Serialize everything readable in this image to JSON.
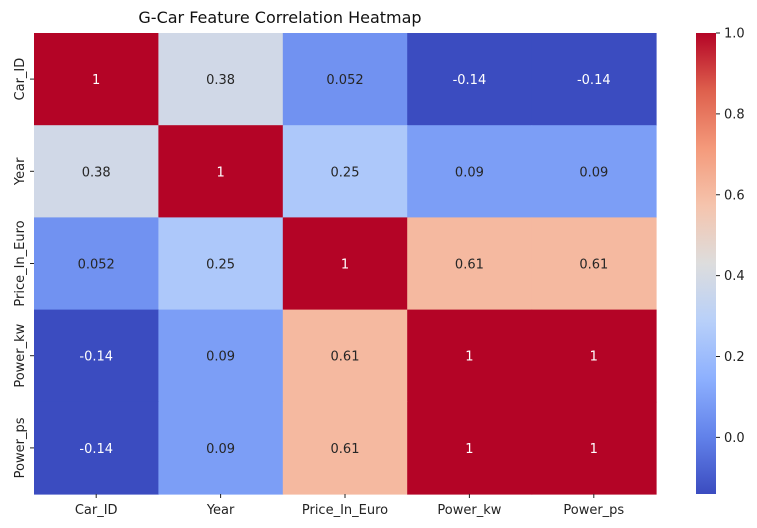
{
  "chart_data": {
    "type": "heatmap",
    "title": "G-Car Feature Correlation Heatmap",
    "xlabel": "",
    "ylabel": "",
    "x_categories": [
      "Car_ID",
      "Year",
      "Price_In_Euro",
      "Power_kw",
      "Power_ps"
    ],
    "y_categories": [
      "Car_ID",
      "Year",
      "Price_In_Euro",
      "Power_kw",
      "Power_ps"
    ],
    "values": [
      [
        1,
        0.38,
        0.052,
        -0.14,
        -0.14
      ],
      [
        0.38,
        1,
        0.25,
        0.09,
        0.09
      ],
      [
        0.052,
        0.25,
        1,
        0.61,
        0.61
      ],
      [
        -0.14,
        0.09,
        0.61,
        1,
        1
      ],
      [
        -0.14,
        0.09,
        0.61,
        1,
        1
      ]
    ],
    "annotations": [
      [
        "1",
        "0.38",
        "0.052",
        "-0.14",
        "-0.14"
      ],
      [
        "0.38",
        "1",
        "0.25",
        "0.09",
        "0.09"
      ],
      [
        "0.052",
        "0.25",
        "1",
        "0.61",
        "0.61"
      ],
      [
        "-0.14",
        "0.09",
        "0.61",
        "1",
        "1"
      ],
      [
        "-0.14",
        "0.09",
        "0.61",
        "1",
        "1"
      ]
    ],
    "colormap": "coolwarm",
    "colorbar": {
      "vmin": -0.14,
      "vmax": 1.0,
      "ticks": [
        0.0,
        0.2,
        0.4,
        0.6,
        0.8,
        1.0
      ],
      "tick_labels": [
        "0.0",
        "0.2",
        "0.4",
        "0.6",
        "0.8",
        "1.0"
      ]
    },
    "grid": false,
    "legend": "colorbar-right"
  }
}
